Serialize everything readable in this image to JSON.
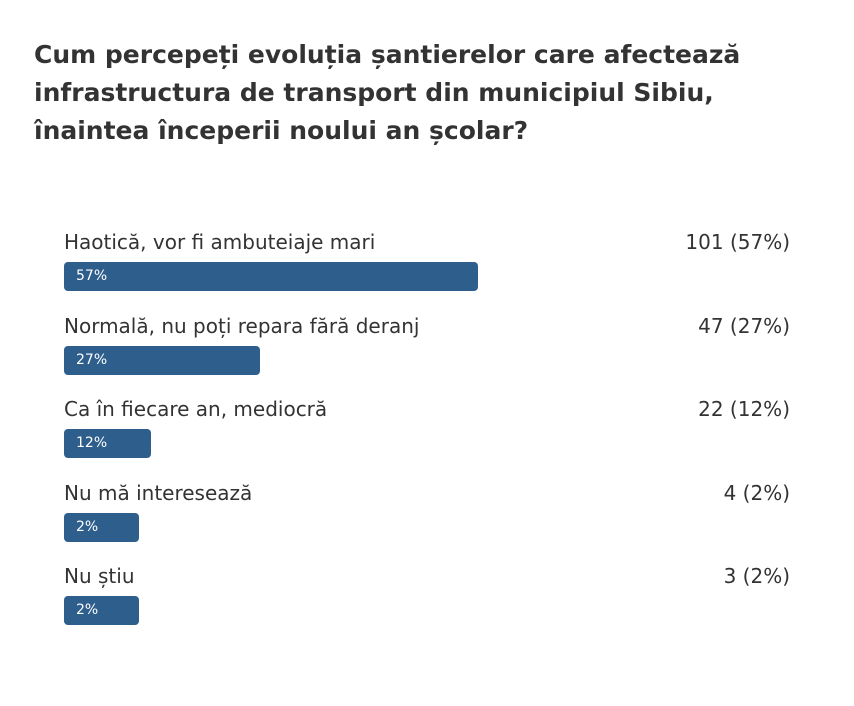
{
  "poll": {
    "question": "Cum percepeți evoluția șantierelor care afectează infrastructura de transport din municipiul Sibiu, înaintea începerii noului an școlar?"
  },
  "colors": {
    "bar": "#2e5f8c",
    "text": "#333333",
    "bar_text": "#ffffff"
  },
  "chart_data": {
    "type": "bar",
    "orientation": "horizontal",
    "title": "Cum percepeți evoluția șantierelor care afectează infrastructura de transport din municipiul Sibiu, înaintea începerii noului an școlar?",
    "categories": [
      "Haotică, vor fi ambuteiaje mari",
      "Normală, nu poți repara fără deranj",
      "Ca în fiecare an, mediocră",
      "Nu mă interesează",
      "Nu știu"
    ],
    "values": [
      101,
      47,
      22,
      4,
      3
    ],
    "percents": [
      57,
      27,
      12,
      2,
      2
    ],
    "percent_labels": [
      "57%",
      "27%",
      "12%",
      "2%",
      "2%"
    ],
    "result_labels": [
      "101 (57%)",
      "47 (27%)",
      "22 (12%)",
      "4 (2%)",
      "3 (2%)"
    ],
    "xlim": [
      0,
      100
    ]
  }
}
